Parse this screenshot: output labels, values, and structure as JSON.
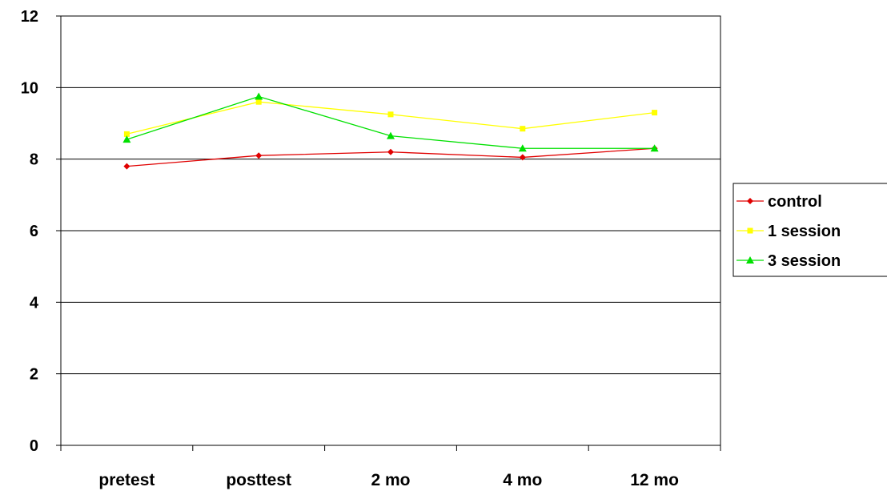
{
  "chart_data": {
    "type": "line",
    "categories": [
      "pretest",
      "posttest",
      "2 mo",
      "4 mo",
      "12 mo"
    ],
    "yticks": [
      "0",
      "2",
      "4",
      "6",
      "8",
      "10",
      "12"
    ],
    "ylim": [
      0,
      12
    ],
    "grid": true,
    "legend_position": "right",
    "series": [
      {
        "name": "control",
        "color": "#e00000",
        "marker": "diamond",
        "values": [
          7.8,
          8.1,
          8.2,
          8.05,
          8.3
        ]
      },
      {
        "name": "1 session",
        "color": "#ffff00",
        "marker": "square",
        "values": [
          8.7,
          9.6,
          9.25,
          8.85,
          9.3
        ]
      },
      {
        "name": "3 session",
        "color": "#00e000",
        "marker": "triangle",
        "values": [
          8.55,
          9.75,
          8.65,
          8.3,
          8.3
        ]
      }
    ]
  }
}
